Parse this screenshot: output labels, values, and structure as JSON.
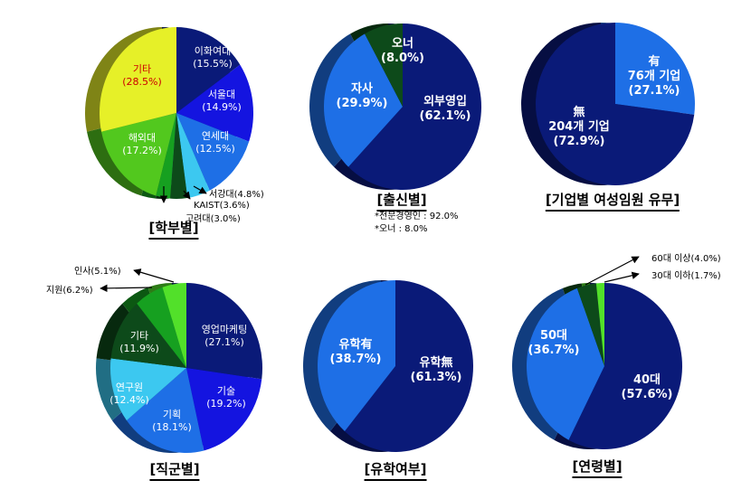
{
  "chart_data": [
    {
      "type": "pie",
      "title": "[학부별]",
      "slices": [
        {
          "label": "이화여대",
          "value": 15.5,
          "pct_text": "(15.5%)",
          "color": "#0a1a78"
        },
        {
          "label": "서울대",
          "value": 14.9,
          "pct_text": "(14.9%)",
          "color": "#1414e0"
        },
        {
          "label": "연세대",
          "value": 12.5,
          "pct_text": "(12.5%)",
          "color": "#1e6fe6"
        },
        {
          "label": "서강대",
          "value": 4.8,
          "pct_text": "(4.8%)",
          "color": "#3cc8f0"
        },
        {
          "label": "KAIST",
          "value": 3.6,
          "pct_text": "(3.6%)",
          "color": "#0d4a1a"
        },
        {
          "label": "고려대",
          "value": 3.0,
          "pct_text": "(3.0%)",
          "color": "#16a020"
        },
        {
          "label": "해외대",
          "value": 17.2,
          "pct_text": "(17.2%)",
          "color": "#52c81e"
        },
        {
          "label": "기타",
          "value": 28.5,
          "pct_text": "(28.5%)",
          "color": "#e6f028"
        }
      ],
      "callouts": [
        "서강대(4.8%)",
        "KAIST(3.6%)",
        "고려대(3.0%)"
      ]
    },
    {
      "type": "pie",
      "title": "[출신별]",
      "slices": [
        {
          "label": "외부영입",
          "value": 62.1,
          "pct_text": "(62.1%)",
          "color": "#0a1a78"
        },
        {
          "label": "자사",
          "value": 29.9,
          "pct_text": "(29.9%)",
          "color": "#1e6fe6"
        },
        {
          "label": "오너",
          "value": 8.0,
          "pct_text": "(8.0%)",
          "color": "#0d4a1a"
        }
      ],
      "notes": [
        "*전문경영인 : 92.0%",
        "*오너 : 8.0%"
      ]
    },
    {
      "type": "pie",
      "title": "[기업별 여성임원 유무]",
      "slices": [
        {
          "label": "有",
          "label2": "76개 기업",
          "value": 27.1,
          "pct_text": "(27.1%)",
          "color": "#1e6fe6"
        },
        {
          "label": "無",
          "label2": "204개 기업",
          "value": 72.9,
          "pct_text": "(72.9%)",
          "color": "#0a1a78"
        }
      ]
    },
    {
      "type": "pie",
      "title": "[직군별]",
      "slices": [
        {
          "label": "영업마케팅",
          "value": 27.1,
          "pct_text": "(27.1%)",
          "color": "#0a1a78"
        },
        {
          "label": "기술",
          "value": 19.2,
          "pct_text": "(19.2%)",
          "color": "#1414e0"
        },
        {
          "label": "기획",
          "value": 18.1,
          "pct_text": "(18.1%)",
          "color": "#1e6fe6"
        },
        {
          "label": "연구원",
          "value": 12.4,
          "pct_text": "(12.4%)",
          "color": "#3cc8f0"
        },
        {
          "label": "기타",
          "value": 11.9,
          "pct_text": "(11.9%)",
          "color": "#0d4a1a"
        },
        {
          "label": "지원",
          "value": 6.2,
          "pct_text": "(6.2%)",
          "color": "#16a020"
        },
        {
          "label": "인사",
          "value": 5.1,
          "pct_text": "(5.1%)",
          "color": "#52e02a"
        }
      ],
      "callouts": [
        "인사(5.1%)",
        "지원(6.2%)"
      ]
    },
    {
      "type": "pie",
      "title": "[유학여부]",
      "slices": [
        {
          "label": "유학無",
          "value": 61.3,
          "pct_text": "(61.3%)",
          "color": "#0a1a78"
        },
        {
          "label": "유학有",
          "value": 38.7,
          "pct_text": "(38.7%)",
          "color": "#1e6fe6"
        }
      ]
    },
    {
      "type": "pie",
      "title": "[연령별]",
      "slices": [
        {
          "label": "40대",
          "value": 57.6,
          "pct_text": "(57.6%)",
          "color": "#0a1a78"
        },
        {
          "label": "50대",
          "value": 36.7,
          "pct_text": "(36.7%)",
          "color": "#1e6fe6"
        },
        {
          "label": "60대 이상",
          "value": 4.0,
          "pct_text": "(4.0%)",
          "color": "#0d4a1a"
        },
        {
          "label": "30대 이하",
          "value": 1.7,
          "pct_text": "(1.7%)",
          "color": "#52e02a"
        }
      ],
      "callouts": [
        "60대 이상(4.0%)",
        "30대 이하(1.7%)"
      ]
    }
  ]
}
